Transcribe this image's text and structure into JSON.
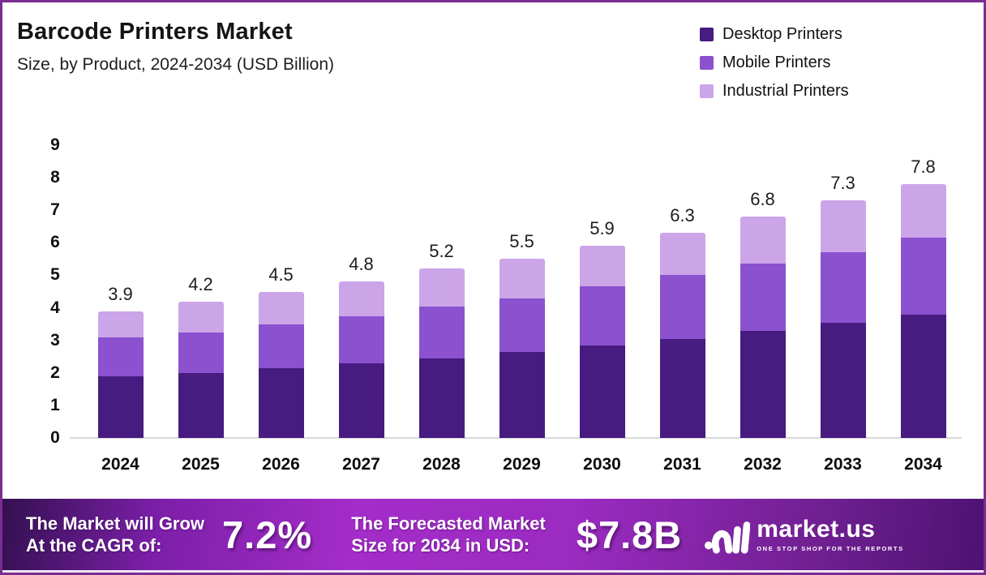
{
  "title": "Barcode Printers Market",
  "subtitle": "Size, by Product, 2024-2034 (USD Billion)",
  "legend": {
    "items": [
      {
        "label": "Desktop Printers",
        "color": "#471b80"
      },
      {
        "label": "Mobile Printers",
        "color": "#8b51cf"
      },
      {
        "label": "Industrial Printers",
        "color": "#cca5e9"
      }
    ]
  },
  "chart_data": {
    "type": "bar",
    "stacked": true,
    "title": "Barcode Printers Market Size, by Product, 2024-2034 (USD Billion)",
    "categories": [
      "2024",
      "2025",
      "2026",
      "2027",
      "2028",
      "2029",
      "2030",
      "2031",
      "2032",
      "2033",
      "2034"
    ],
    "series": [
      {
        "name": "Desktop Printers",
        "color": "#471b80",
        "values": [
          1.9,
          2.0,
          2.15,
          2.3,
          2.45,
          2.65,
          2.85,
          3.05,
          3.3,
          3.55,
          3.8
        ]
      },
      {
        "name": "Mobile Printers",
        "color": "#8b51cf",
        "values": [
          1.2,
          1.25,
          1.35,
          1.45,
          1.6,
          1.65,
          1.8,
          1.95,
          2.05,
          2.15,
          2.35
        ]
      },
      {
        "name": "Industrial Printers",
        "color": "#cca5e9",
        "values": [
          0.8,
          0.95,
          1.0,
          1.05,
          1.15,
          1.2,
          1.25,
          1.3,
          1.45,
          1.6,
          1.65
        ]
      }
    ],
    "totals": [
      3.9,
      4.2,
      4.5,
      4.8,
      5.2,
      5.5,
      5.9,
      6.3,
      6.8,
      7.3,
      7.8
    ],
    "total_labels": [
      "3.9",
      "4.2",
      "4.5",
      "4.8",
      "5.2",
      "5.5",
      "5.9",
      "6.3",
      "6.8",
      "7.3",
      "7.8"
    ],
    "xlabel": "",
    "ylabel": "",
    "ylim": [
      0,
      9
    ],
    "yticks": [
      0,
      1,
      2,
      3,
      4,
      5,
      6,
      7,
      8,
      9
    ],
    "grid": false,
    "legend_position": "top-right"
  },
  "banner": {
    "cagr_text_line1": "The Market will Grow",
    "cagr_text_line2": "At the CAGR of:",
    "cagr_value": "7.2%",
    "forecast_text_line1": "The Forecasted Market",
    "forecast_text_line2": "Size for 2034 in USD:",
    "forecast_value": "$7.8B",
    "logo_name": "market.us",
    "logo_tagline": "ONE STOP SHOP FOR THE REPORTS"
  },
  "colors": {
    "frame_border": "#7b2d8f",
    "baseline": "#d9d9d9",
    "banner_gradient_start": "#32104f",
    "banner_gradient_mid": "#a42cc9",
    "banner_gradient_end": "#4d1272"
  }
}
